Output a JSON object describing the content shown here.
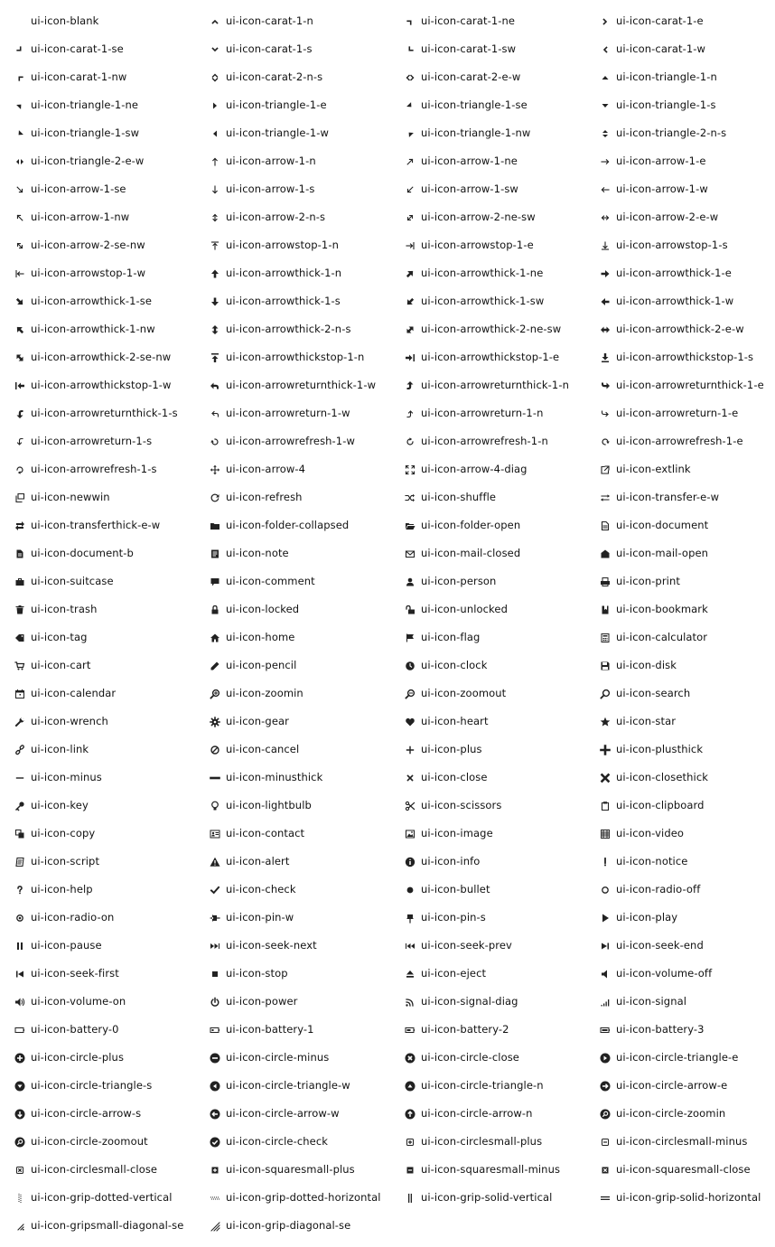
{
  "icons": [
    {
      "label": "ui-icon-blank",
      "icon": "blank-icon"
    },
    {
      "label": "ui-icon-carat-1-n",
      "icon": "carat-1-n-icon"
    },
    {
      "label": "ui-icon-carat-1-ne",
      "icon": "carat-1-ne-icon"
    },
    {
      "label": "ui-icon-carat-1-e",
      "icon": "carat-1-e-icon"
    },
    {
      "label": "ui-icon-carat-1-se",
      "icon": "carat-1-se-icon"
    },
    {
      "label": "ui-icon-carat-1-s",
      "icon": "carat-1-s-icon"
    },
    {
      "label": "ui-icon-carat-1-sw",
      "icon": "carat-1-sw-icon"
    },
    {
      "label": "ui-icon-carat-1-w",
      "icon": "carat-1-w-icon"
    },
    {
      "label": "ui-icon-carat-1-nw",
      "icon": "carat-1-nw-icon"
    },
    {
      "label": "ui-icon-carat-2-n-s",
      "icon": "carat-2-n-s-icon"
    },
    {
      "label": "ui-icon-carat-2-e-w",
      "icon": "carat-2-e-w-icon"
    },
    {
      "label": "ui-icon-triangle-1-n",
      "icon": "triangle-1-n-icon"
    },
    {
      "label": "ui-icon-triangle-1-ne",
      "icon": "triangle-1-ne-icon"
    },
    {
      "label": "ui-icon-triangle-1-e",
      "icon": "triangle-1-e-icon"
    },
    {
      "label": "ui-icon-triangle-1-se",
      "icon": "triangle-1-se-icon"
    },
    {
      "label": "ui-icon-triangle-1-s",
      "icon": "triangle-1-s-icon"
    },
    {
      "label": "ui-icon-triangle-1-sw",
      "icon": "triangle-1-sw-icon"
    },
    {
      "label": "ui-icon-triangle-1-w",
      "icon": "triangle-1-w-icon"
    },
    {
      "label": "ui-icon-triangle-1-nw",
      "icon": "triangle-1-nw-icon"
    },
    {
      "label": "ui-icon-triangle-2-n-s",
      "icon": "triangle-2-n-s-icon"
    },
    {
      "label": "ui-icon-triangle-2-e-w",
      "icon": "triangle-2-e-w-icon"
    },
    {
      "label": "ui-icon-arrow-1-n",
      "icon": "arrow-1-n-icon"
    },
    {
      "label": "ui-icon-arrow-1-ne",
      "icon": "arrow-1-ne-icon"
    },
    {
      "label": "ui-icon-arrow-1-e",
      "icon": "arrow-1-e-icon"
    },
    {
      "label": "ui-icon-arrow-1-se",
      "icon": "arrow-1-se-icon"
    },
    {
      "label": "ui-icon-arrow-1-s",
      "icon": "arrow-1-s-icon"
    },
    {
      "label": "ui-icon-arrow-1-sw",
      "icon": "arrow-1-sw-icon"
    },
    {
      "label": "ui-icon-arrow-1-w",
      "icon": "arrow-1-w-icon"
    },
    {
      "label": "ui-icon-arrow-1-nw",
      "icon": "arrow-1-nw-icon"
    },
    {
      "label": "ui-icon-arrow-2-n-s",
      "icon": "arrow-2-n-s-icon"
    },
    {
      "label": "ui-icon-arrow-2-ne-sw",
      "icon": "arrow-2-ne-sw-icon"
    },
    {
      "label": "ui-icon-arrow-2-e-w",
      "icon": "arrow-2-e-w-icon"
    },
    {
      "label": "ui-icon-arrow-2-se-nw",
      "icon": "arrow-2-se-nw-icon"
    },
    {
      "label": "ui-icon-arrowstop-1-n",
      "icon": "arrowstop-1-n-icon"
    },
    {
      "label": "ui-icon-arrowstop-1-e",
      "icon": "arrowstop-1-e-icon"
    },
    {
      "label": "ui-icon-arrowstop-1-s",
      "icon": "arrowstop-1-s-icon"
    },
    {
      "label": "ui-icon-arrowstop-1-w",
      "icon": "arrowstop-1-w-icon"
    },
    {
      "label": "ui-icon-arrowthick-1-n",
      "icon": "arrowthick-1-n-icon"
    },
    {
      "label": "ui-icon-arrowthick-1-ne",
      "icon": "arrowthick-1-ne-icon"
    },
    {
      "label": "ui-icon-arrowthick-1-e",
      "icon": "arrowthick-1-e-icon"
    },
    {
      "label": "ui-icon-arrowthick-1-se",
      "icon": "arrowthick-1-se-icon"
    },
    {
      "label": "ui-icon-arrowthick-1-s",
      "icon": "arrowthick-1-s-icon"
    },
    {
      "label": "ui-icon-arrowthick-1-sw",
      "icon": "arrowthick-1-sw-icon"
    },
    {
      "label": "ui-icon-arrowthick-1-w",
      "icon": "arrowthick-1-w-icon"
    },
    {
      "label": "ui-icon-arrowthick-1-nw",
      "icon": "arrowthick-1-nw-icon"
    },
    {
      "label": "ui-icon-arrowthick-2-n-s",
      "icon": "arrowthick-2-n-s-icon"
    },
    {
      "label": "ui-icon-arrowthick-2-ne-sw",
      "icon": "arrowthick-2-ne-sw-icon"
    },
    {
      "label": "ui-icon-arrowthick-2-e-w",
      "icon": "arrowthick-2-e-w-icon"
    },
    {
      "label": "ui-icon-arrowthick-2-se-nw",
      "icon": "arrowthick-2-se-nw-icon"
    },
    {
      "label": "ui-icon-arrowthickstop-1-n",
      "icon": "arrowthickstop-1-n-icon"
    },
    {
      "label": "ui-icon-arrowthickstop-1-e",
      "icon": "arrowthickstop-1-e-icon"
    },
    {
      "label": "ui-icon-arrowthickstop-1-s",
      "icon": "arrowthickstop-1-s-icon"
    },
    {
      "label": "ui-icon-arrowthickstop-1-w",
      "icon": "arrowthickstop-1-w-icon"
    },
    {
      "label": "ui-icon-arrowreturnthick-1-w",
      "icon": "arrowreturnthick-1-w-icon"
    },
    {
      "label": "ui-icon-arrowreturnthick-1-n",
      "icon": "arrowreturnthick-1-n-icon"
    },
    {
      "label": "ui-icon-arrowreturnthick-1-e",
      "icon": "arrowreturnthick-1-e-icon"
    },
    {
      "label": "ui-icon-arrowreturnthick-1-s",
      "icon": "arrowreturnthick-1-s-icon"
    },
    {
      "label": "ui-icon-arrowreturn-1-w",
      "icon": "arrowreturn-1-w-icon"
    },
    {
      "label": "ui-icon-arrowreturn-1-n",
      "icon": "arrowreturn-1-n-icon"
    },
    {
      "label": "ui-icon-arrowreturn-1-e",
      "icon": "arrowreturn-1-e-icon"
    },
    {
      "label": "ui-icon-arrowreturn-1-s",
      "icon": "arrowreturn-1-s-icon"
    },
    {
      "label": "ui-icon-arrowrefresh-1-w",
      "icon": "arrowrefresh-1-w-icon"
    },
    {
      "label": "ui-icon-arrowrefresh-1-n",
      "icon": "arrowrefresh-1-n-icon"
    },
    {
      "label": "ui-icon-arrowrefresh-1-e",
      "icon": "arrowrefresh-1-e-icon"
    },
    {
      "label": "ui-icon-arrowrefresh-1-s",
      "icon": "arrowrefresh-1-s-icon"
    },
    {
      "label": "ui-icon-arrow-4",
      "icon": "arrow-4-icon"
    },
    {
      "label": "ui-icon-arrow-4-diag",
      "icon": "arrow-4-diag-icon"
    },
    {
      "label": "ui-icon-extlink",
      "icon": "extlink-icon"
    },
    {
      "label": "ui-icon-newwin",
      "icon": "newwin-icon"
    },
    {
      "label": "ui-icon-refresh",
      "icon": "refresh-icon"
    },
    {
      "label": "ui-icon-shuffle",
      "icon": "shuffle-icon"
    },
    {
      "label": "ui-icon-transfer-e-w",
      "icon": "transfer-e-w-icon"
    },
    {
      "label": "ui-icon-transferthick-e-w",
      "icon": "transferthick-e-w-icon"
    },
    {
      "label": "ui-icon-folder-collapsed",
      "icon": "folder-collapsed-icon"
    },
    {
      "label": "ui-icon-folder-open",
      "icon": "folder-open-icon"
    },
    {
      "label": "ui-icon-document",
      "icon": "document-icon"
    },
    {
      "label": "ui-icon-document-b",
      "icon": "document-b-icon"
    },
    {
      "label": "ui-icon-note",
      "icon": "note-icon"
    },
    {
      "label": "ui-icon-mail-closed",
      "icon": "mail-closed-icon"
    },
    {
      "label": "ui-icon-mail-open",
      "icon": "mail-open-icon"
    },
    {
      "label": "ui-icon-suitcase",
      "icon": "suitcase-icon"
    },
    {
      "label": "ui-icon-comment",
      "icon": "comment-icon"
    },
    {
      "label": "ui-icon-person",
      "icon": "person-icon"
    },
    {
      "label": "ui-icon-print",
      "icon": "print-icon"
    },
    {
      "label": "ui-icon-trash",
      "icon": "trash-icon"
    },
    {
      "label": "ui-icon-locked",
      "icon": "locked-icon"
    },
    {
      "label": "ui-icon-unlocked",
      "icon": "unlocked-icon"
    },
    {
      "label": "ui-icon-bookmark",
      "icon": "bookmark-icon"
    },
    {
      "label": "ui-icon-tag",
      "icon": "tag-icon"
    },
    {
      "label": "ui-icon-home",
      "icon": "home-icon"
    },
    {
      "label": "ui-icon-flag",
      "icon": "flag-icon"
    },
    {
      "label": "ui-icon-calculator",
      "icon": "calculator-icon"
    },
    {
      "label": "ui-icon-cart",
      "icon": "cart-icon"
    },
    {
      "label": "ui-icon-pencil",
      "icon": "pencil-icon"
    },
    {
      "label": "ui-icon-clock",
      "icon": "clock-icon"
    },
    {
      "label": "ui-icon-disk",
      "icon": "disk-icon"
    },
    {
      "label": "ui-icon-calendar",
      "icon": "calendar-icon"
    },
    {
      "label": "ui-icon-zoomin",
      "icon": "zoomin-icon"
    },
    {
      "label": "ui-icon-zoomout",
      "icon": "zoomout-icon"
    },
    {
      "label": "ui-icon-search",
      "icon": "search-icon"
    },
    {
      "label": "ui-icon-wrench",
      "icon": "wrench-icon"
    },
    {
      "label": "ui-icon-gear",
      "icon": "gear-icon"
    },
    {
      "label": "ui-icon-heart",
      "icon": "heart-icon"
    },
    {
      "label": "ui-icon-star",
      "icon": "star-icon"
    },
    {
      "label": "ui-icon-link",
      "icon": "link-icon"
    },
    {
      "label": "ui-icon-cancel",
      "icon": "cancel-icon"
    },
    {
      "label": "ui-icon-plus",
      "icon": "plus-icon"
    },
    {
      "label": "ui-icon-plusthick",
      "icon": "plusthick-icon"
    },
    {
      "label": "ui-icon-minus",
      "icon": "minus-icon"
    },
    {
      "label": "ui-icon-minusthick",
      "icon": "minusthick-icon"
    },
    {
      "label": "ui-icon-close",
      "icon": "close-icon"
    },
    {
      "label": "ui-icon-closethick",
      "icon": "closethick-icon"
    },
    {
      "label": "ui-icon-key",
      "icon": "key-icon"
    },
    {
      "label": "ui-icon-lightbulb",
      "icon": "lightbulb-icon"
    },
    {
      "label": "ui-icon-scissors",
      "icon": "scissors-icon"
    },
    {
      "label": "ui-icon-clipboard",
      "icon": "clipboard-icon"
    },
    {
      "label": "ui-icon-copy",
      "icon": "copy-icon"
    },
    {
      "label": "ui-icon-contact",
      "icon": "contact-icon"
    },
    {
      "label": "ui-icon-image",
      "icon": "image-icon"
    },
    {
      "label": "ui-icon-video",
      "icon": "video-icon"
    },
    {
      "label": "ui-icon-script",
      "icon": "script-icon"
    },
    {
      "label": "ui-icon-alert",
      "icon": "alert-icon"
    },
    {
      "label": "ui-icon-info",
      "icon": "info-icon"
    },
    {
      "label": "ui-icon-notice",
      "icon": "notice-icon"
    },
    {
      "label": "ui-icon-help",
      "icon": "help-icon"
    },
    {
      "label": "ui-icon-check",
      "icon": "check-icon"
    },
    {
      "label": "ui-icon-bullet",
      "icon": "bullet-icon"
    },
    {
      "label": "ui-icon-radio-off",
      "icon": "radio-off-icon"
    },
    {
      "label": "ui-icon-radio-on",
      "icon": "radio-on-icon"
    },
    {
      "label": "ui-icon-pin-w",
      "icon": "pin-w-icon"
    },
    {
      "label": "ui-icon-pin-s",
      "icon": "pin-s-icon"
    },
    {
      "label": "ui-icon-play",
      "icon": "play-icon"
    },
    {
      "label": "ui-icon-pause",
      "icon": "pause-icon"
    },
    {
      "label": "ui-icon-seek-next",
      "icon": "seek-next-icon"
    },
    {
      "label": "ui-icon-seek-prev",
      "icon": "seek-prev-icon"
    },
    {
      "label": "ui-icon-seek-end",
      "icon": "seek-end-icon"
    },
    {
      "label": "ui-icon-seek-first",
      "icon": "seek-first-icon"
    },
    {
      "label": "ui-icon-stop",
      "icon": "stop-icon"
    },
    {
      "label": "ui-icon-eject",
      "icon": "eject-icon"
    },
    {
      "label": "ui-icon-volume-off",
      "icon": "volume-off-icon"
    },
    {
      "label": "ui-icon-volume-on",
      "icon": "volume-on-icon"
    },
    {
      "label": "ui-icon-power",
      "icon": "power-icon"
    },
    {
      "label": "ui-icon-signal-diag",
      "icon": "signal-diag-icon"
    },
    {
      "label": "ui-icon-signal",
      "icon": "signal-icon"
    },
    {
      "label": "ui-icon-battery-0",
      "icon": "battery-0-icon"
    },
    {
      "label": "ui-icon-battery-1",
      "icon": "battery-1-icon"
    },
    {
      "label": "ui-icon-battery-2",
      "icon": "battery-2-icon"
    },
    {
      "label": "ui-icon-battery-3",
      "icon": "battery-3-icon"
    },
    {
      "label": "ui-icon-circle-plus",
      "icon": "circle-plus-icon"
    },
    {
      "label": "ui-icon-circle-minus",
      "icon": "circle-minus-icon"
    },
    {
      "label": "ui-icon-circle-close",
      "icon": "circle-close-icon"
    },
    {
      "label": "ui-icon-circle-triangle-e",
      "icon": "circle-triangle-e-icon"
    },
    {
      "label": "ui-icon-circle-triangle-s",
      "icon": "circle-triangle-s-icon"
    },
    {
      "label": "ui-icon-circle-triangle-w",
      "icon": "circle-triangle-w-icon"
    },
    {
      "label": "ui-icon-circle-triangle-n",
      "icon": "circle-triangle-n-icon"
    },
    {
      "label": "ui-icon-circle-arrow-e",
      "icon": "circle-arrow-e-icon"
    },
    {
      "label": "ui-icon-circle-arrow-s",
      "icon": "circle-arrow-s-icon"
    },
    {
      "label": "ui-icon-circle-arrow-w",
      "icon": "circle-arrow-w-icon"
    },
    {
      "label": "ui-icon-circle-arrow-n",
      "icon": "circle-arrow-n-icon"
    },
    {
      "label": "ui-icon-circle-zoomin",
      "icon": "circle-zoomin-icon"
    },
    {
      "label": "ui-icon-circle-zoomout",
      "icon": "circle-zoomout-icon"
    },
    {
      "label": "ui-icon-circle-check",
      "icon": "circle-check-icon"
    },
    {
      "label": "ui-icon-circlesmall-plus",
      "icon": "circlesmall-plus-icon"
    },
    {
      "label": "ui-icon-circlesmall-minus",
      "icon": "circlesmall-minus-icon"
    },
    {
      "label": "ui-icon-circlesmall-close",
      "icon": "circlesmall-close-icon"
    },
    {
      "label": "ui-icon-squaresmall-plus",
      "icon": "squaresmall-plus-icon"
    },
    {
      "label": "ui-icon-squaresmall-minus",
      "icon": "squaresmall-minus-icon"
    },
    {
      "label": "ui-icon-squaresmall-close",
      "icon": "squaresmall-close-icon"
    },
    {
      "label": "ui-icon-grip-dotted-vertical",
      "icon": "grip-dotted-vertical-icon"
    },
    {
      "label": "ui-icon-grip-dotted-horizontal",
      "icon": "grip-dotted-horizontal-icon"
    },
    {
      "label": "ui-icon-grip-solid-vertical",
      "icon": "grip-solid-vertical-icon"
    },
    {
      "label": "ui-icon-grip-solid-horizontal",
      "icon": "grip-solid-horizontal-icon"
    },
    {
      "label": "ui-icon-gripsmall-diagonal-se",
      "icon": "gripsmall-diagonal-se-icon"
    },
    {
      "label": "ui-icon-grip-diagonal-se",
      "icon": "grip-diagonal-se-icon"
    }
  ],
  "colors": {
    "icon": "#222222",
    "text": "#111111",
    "background": "#ffffff"
  }
}
